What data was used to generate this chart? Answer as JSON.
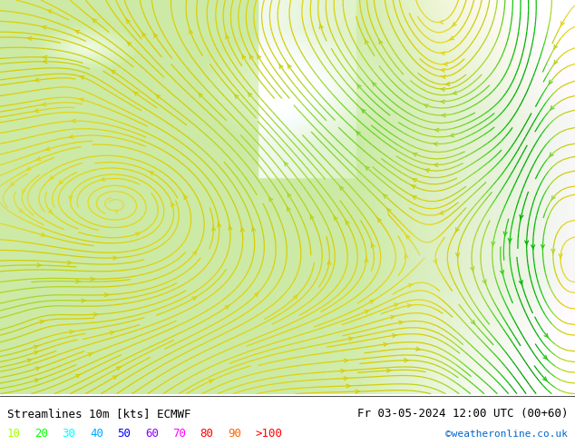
{
  "title_left": "Streamlines 10m [kts] ECMWF",
  "title_right": "Fr 03-05-2024 12:00 UTC (00+60)",
  "watermark": "©weatheronline.co.uk",
  "legend_values": [
    "10",
    "20",
    "30",
    "40",
    "50",
    "60",
    "70",
    "80",
    "90",
    ">100"
  ],
  "legend_colors": [
    "#aaff00",
    "#00ff00",
    "#00ffff",
    "#00aaff",
    "#0000ff",
    "#aa00ff",
    "#ff00ff",
    "#ff0000",
    "#ff6600",
    "#ff0000"
  ],
  "fig_width": 6.34,
  "fig_height": 4.9,
  "dpi": 100,
  "title_fontsize": 9,
  "legend_fontsize": 9
}
